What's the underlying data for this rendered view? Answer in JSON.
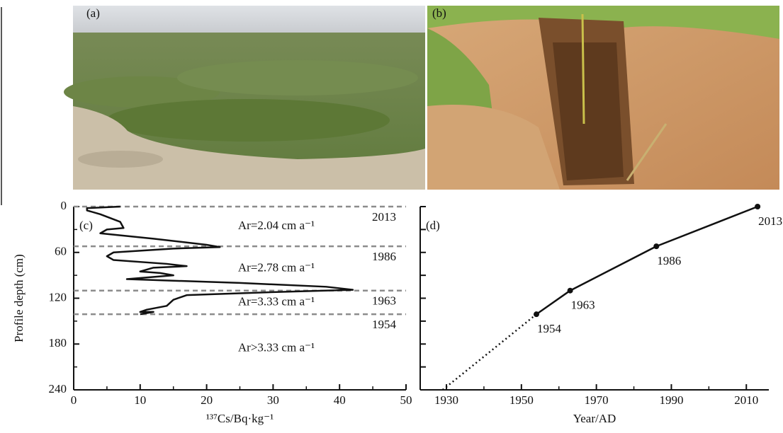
{
  "photos": [
    {
      "label": "(a)"
    },
    {
      "label": "(b)"
    }
  ],
  "chart_data": [
    {
      "type": "line",
      "panel": "(c)",
      "xlabel": "¹³⁷Cs/Bq·kg⁻¹",
      "ylabel": "Profile depth (cm)",
      "xlim": [
        0,
        50
      ],
      "xticks": [
        0,
        10,
        20,
        30,
        40,
        50
      ],
      "ylim": [
        0,
        240
      ],
      "yticks": [
        0,
        60,
        120,
        180,
        240
      ],
      "yreversed": true,
      "series": [
        {
          "color": "#111111",
          "x": [
            7,
            2,
            2,
            4,
            7,
            7.5,
            5,
            4,
            12,
            20,
            22,
            15,
            6,
            5,
            6,
            14,
            17,
            12,
            10,
            13,
            15,
            8,
            25,
            38,
            42,
            30,
            17,
            15,
            14,
            11,
            10,
            12,
            10
          ],
          "values": [
            0,
            2,
            5,
            10,
            20,
            28,
            30,
            35,
            42,
            50,
            53,
            55,
            60,
            65,
            70,
            75,
            78,
            80,
            85,
            87,
            90,
            95,
            100,
            105,
            109,
            112,
            116,
            122,
            130,
            135,
            138,
            138,
            141
          ]
        }
      ],
      "horizons": {
        "depths": [
          0,
          52,
          110,
          141
        ],
        "years": [
          2013,
          1986,
          1963,
          1954
        ],
        "color": "#8c8c8c"
      },
      "annotations": [
        "Ar=2.04 cm a⁻¹",
        "Ar=2.78 cm a⁻¹",
        "Ar=3.33 cm a⁻¹",
        "Ar>3.33 cm a⁻¹"
      ]
    },
    {
      "type": "line",
      "panel": "(d)",
      "xlabel": "Year/AD",
      "xlim": [
        1923,
        2016
      ],
      "xticks": [
        1930,
        1950,
        1970,
        1990,
        2010
      ],
      "ylim": [
        0,
        240
      ],
      "yticks": [
        0,
        30,
        60,
        90,
        120,
        150,
        180,
        210,
        240
      ],
      "yreversed": true,
      "series": [
        {
          "color": "#111111",
          "x": [
            1954,
            1963,
            1986,
            2013
          ],
          "values": [
            141,
            110,
            52,
            0
          ],
          "markers": true,
          "dash": "solid",
          "point_labels": true
        },
        {
          "color": "#111111",
          "x": [
            1929,
            1954
          ],
          "values": [
            240,
            141
          ],
          "markers": false,
          "dash": "dotted",
          "point_labels": false
        }
      ]
    }
  ]
}
